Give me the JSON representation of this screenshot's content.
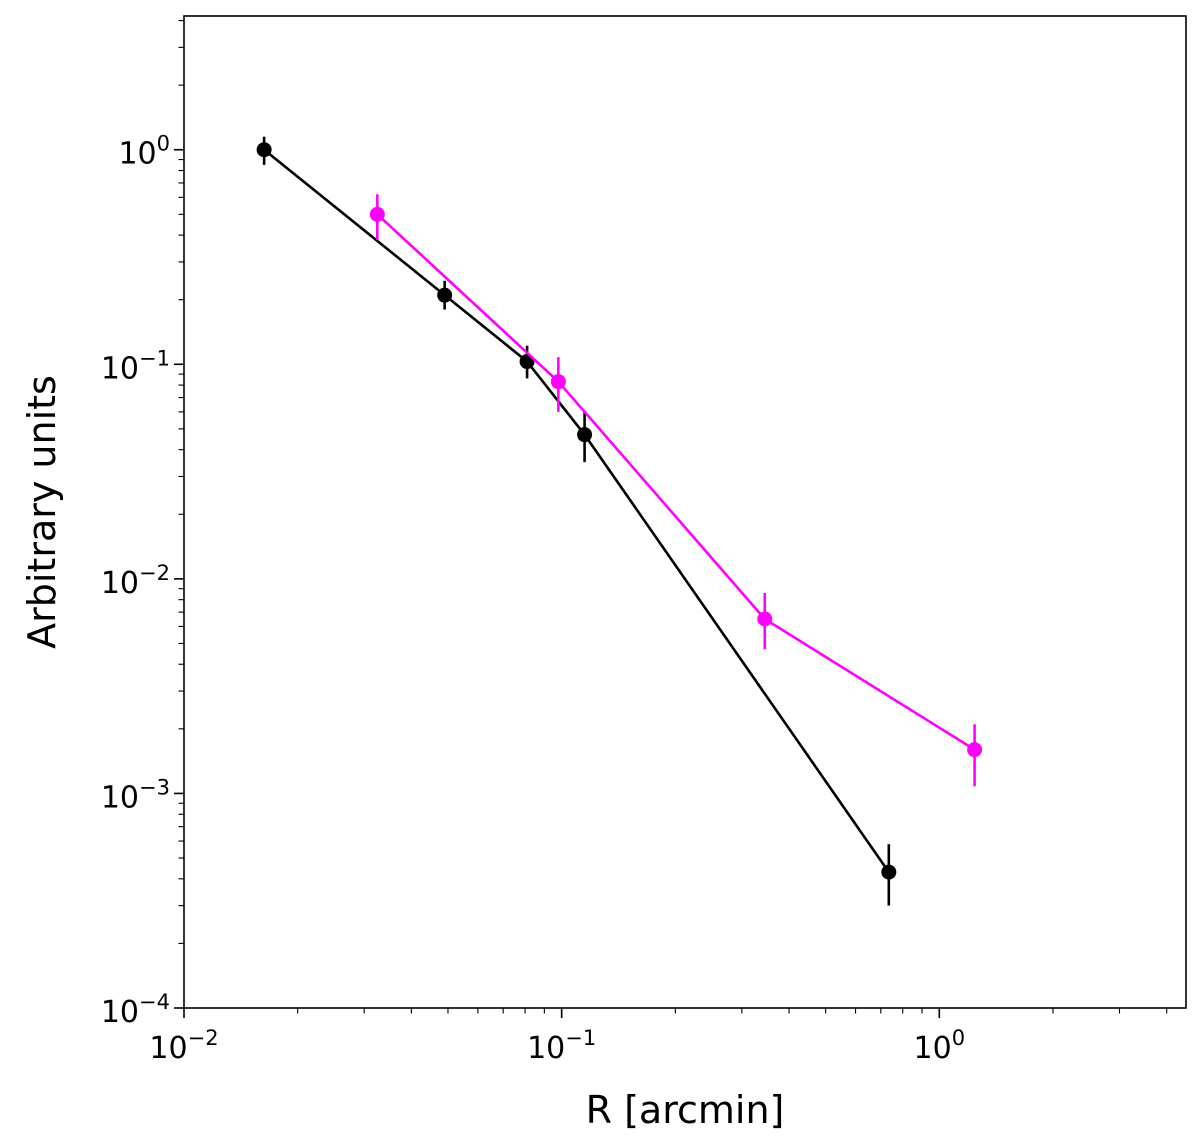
{
  "chart_data": {
    "type": "line",
    "title": "",
    "xlabel": "R [arcmin]",
    "ylabel": "Arbitrary units",
    "xscale": "log",
    "yscale": "log",
    "xlim": [
      0.01,
      4.5
    ],
    "ylim": [
      0.0001,
      4.2
    ],
    "grid": false,
    "legend": "none",
    "x_major_ticks": [
      {
        "base": "10",
        "exp": "−2",
        "value": 0.01
      },
      {
        "base": "10",
        "exp": "−1",
        "value": 0.1
      },
      {
        "base": "10",
        "exp": "0",
        "value": 1
      }
    ],
    "y_major_ticks": [
      {
        "base": "10",
        "exp": "−4",
        "value": 0.0001
      },
      {
        "base": "10",
        "exp": "−3",
        "value": 0.001
      },
      {
        "base": "10",
        "exp": "−2",
        "value": 0.01
      },
      {
        "base": "10",
        "exp": "−1",
        "value": 0.1
      },
      {
        "base": "10",
        "exp": "0",
        "value": 1
      }
    ],
    "series": [
      {
        "color": "#000000",
        "x": [
          0.0163,
          0.049,
          0.081,
          0.115,
          0.735
        ],
        "y": [
          1.0,
          0.21,
          0.103,
          0.047,
          0.00043
        ],
        "yerr_low": [
          0.85,
          0.18,
          0.086,
          0.035,
          0.0003
        ],
        "yerr_high": [
          1.15,
          0.245,
          0.122,
          0.06,
          0.00058
        ]
      },
      {
        "color": "#ff00ff",
        "x": [
          0.0325,
          0.098,
          0.345,
          1.24
        ],
        "y": [
          0.5,
          0.083,
          0.0065,
          0.0016
        ],
        "yerr_low": [
          0.38,
          0.06,
          0.0047,
          0.00108
        ],
        "yerr_high": [
          0.62,
          0.108,
          0.0086,
          0.0021
        ]
      }
    ]
  }
}
